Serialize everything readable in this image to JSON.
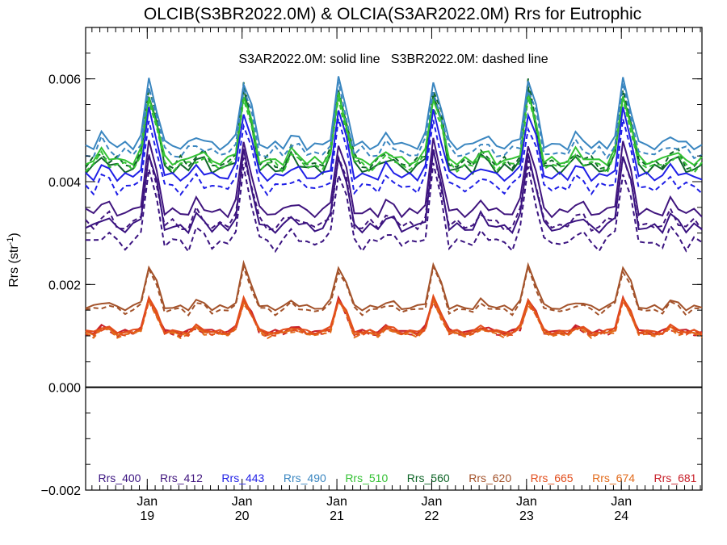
{
  "chart_data": {
    "type": "line",
    "title": "OLCIB(S3BR2022.0M) & OLCIA(S3AR2022.0M)  Rrs for Eutrophic",
    "ylabel_main": "Rrs (str",
    "ylabel_sup": "-1",
    "ylabel_end": ")",
    "note": "S3AR2022.0M: solid line   S3BR2022.0M: dashed line",
    "ylim": [
      -0.002,
      0.007
    ],
    "yticks": [
      {
        "value": -0.002,
        "label": "−0.002"
      },
      {
        "value": 0.0,
        "label": "0.000"
      },
      {
        "value": 0.002,
        "label": "0.002"
      },
      {
        "value": 0.004,
        "label": "0.004"
      },
      {
        "value": 0.006,
        "label": "0.006"
      }
    ],
    "xlim": [
      2018.35,
      2024.85
    ],
    "xticks": [
      {
        "value": 2019.0,
        "month": "Jan",
        "year": "19"
      },
      {
        "value": 2020.0,
        "month": "Jan",
        "year": "20"
      },
      {
        "value": 2021.0,
        "month": "Jan",
        "year": "21"
      },
      {
        "value": 2022.0,
        "month": "Jan",
        "year": "22"
      },
      {
        "value": 2023.0,
        "month": "Jan",
        "year": "23"
      },
      {
        "value": 2024.0,
        "month": "Jan",
        "year": "24"
      }
    ],
    "zero_line": 0.0,
    "series": [
      {
        "name": "Rrs_400",
        "color": "#3a1380",
        "peak": 0.0047,
        "trough": 0.0031,
        "dash_offset": -0.0003
      },
      {
        "name": "Rrs_412",
        "color": "#40157e",
        "peak": 0.0049,
        "trough": 0.0034,
        "dash_offset": -0.00025
      },
      {
        "name": "Rrs_443",
        "color": "#1f1fe6",
        "peak": 0.0055,
        "trough": 0.0041,
        "dash_offset": -0.00022
      },
      {
        "name": "Rrs_490",
        "color": "#3a86c0",
        "peak": 0.0061,
        "trough": 0.0047,
        "dash_offset": -0.00015
      },
      {
        "name": "Rrs_510",
        "color": "#34c234",
        "peak": 0.0058,
        "trough": 0.0044,
        "dash_offset": -0.0001
      },
      {
        "name": "Rrs_560",
        "color": "#0f6628",
        "peak": 0.0059,
        "trough": 0.00425,
        "dash_offset": 0.0001
      },
      {
        "name": "Rrs_620",
        "color": "#a3522a",
        "peak": 0.00245,
        "trough": 0.00155,
        "dash_offset": -6e-05
      },
      {
        "name": "Rrs_665",
        "color": "#e24d1c",
        "peak": 0.0018,
        "trough": 0.00108,
        "dash_offset": -3e-05
      },
      {
        "name": "Rrs_674",
        "color": "#e26a1a",
        "peak": 0.00175,
        "trough": 0.00105,
        "dash_offset": -3e-05
      },
      {
        "name": "Rrs_681",
        "color": "#c8202a",
        "peak": 0.00178,
        "trough": 0.00108,
        "dash_offset": -4e-05
      }
    ]
  }
}
